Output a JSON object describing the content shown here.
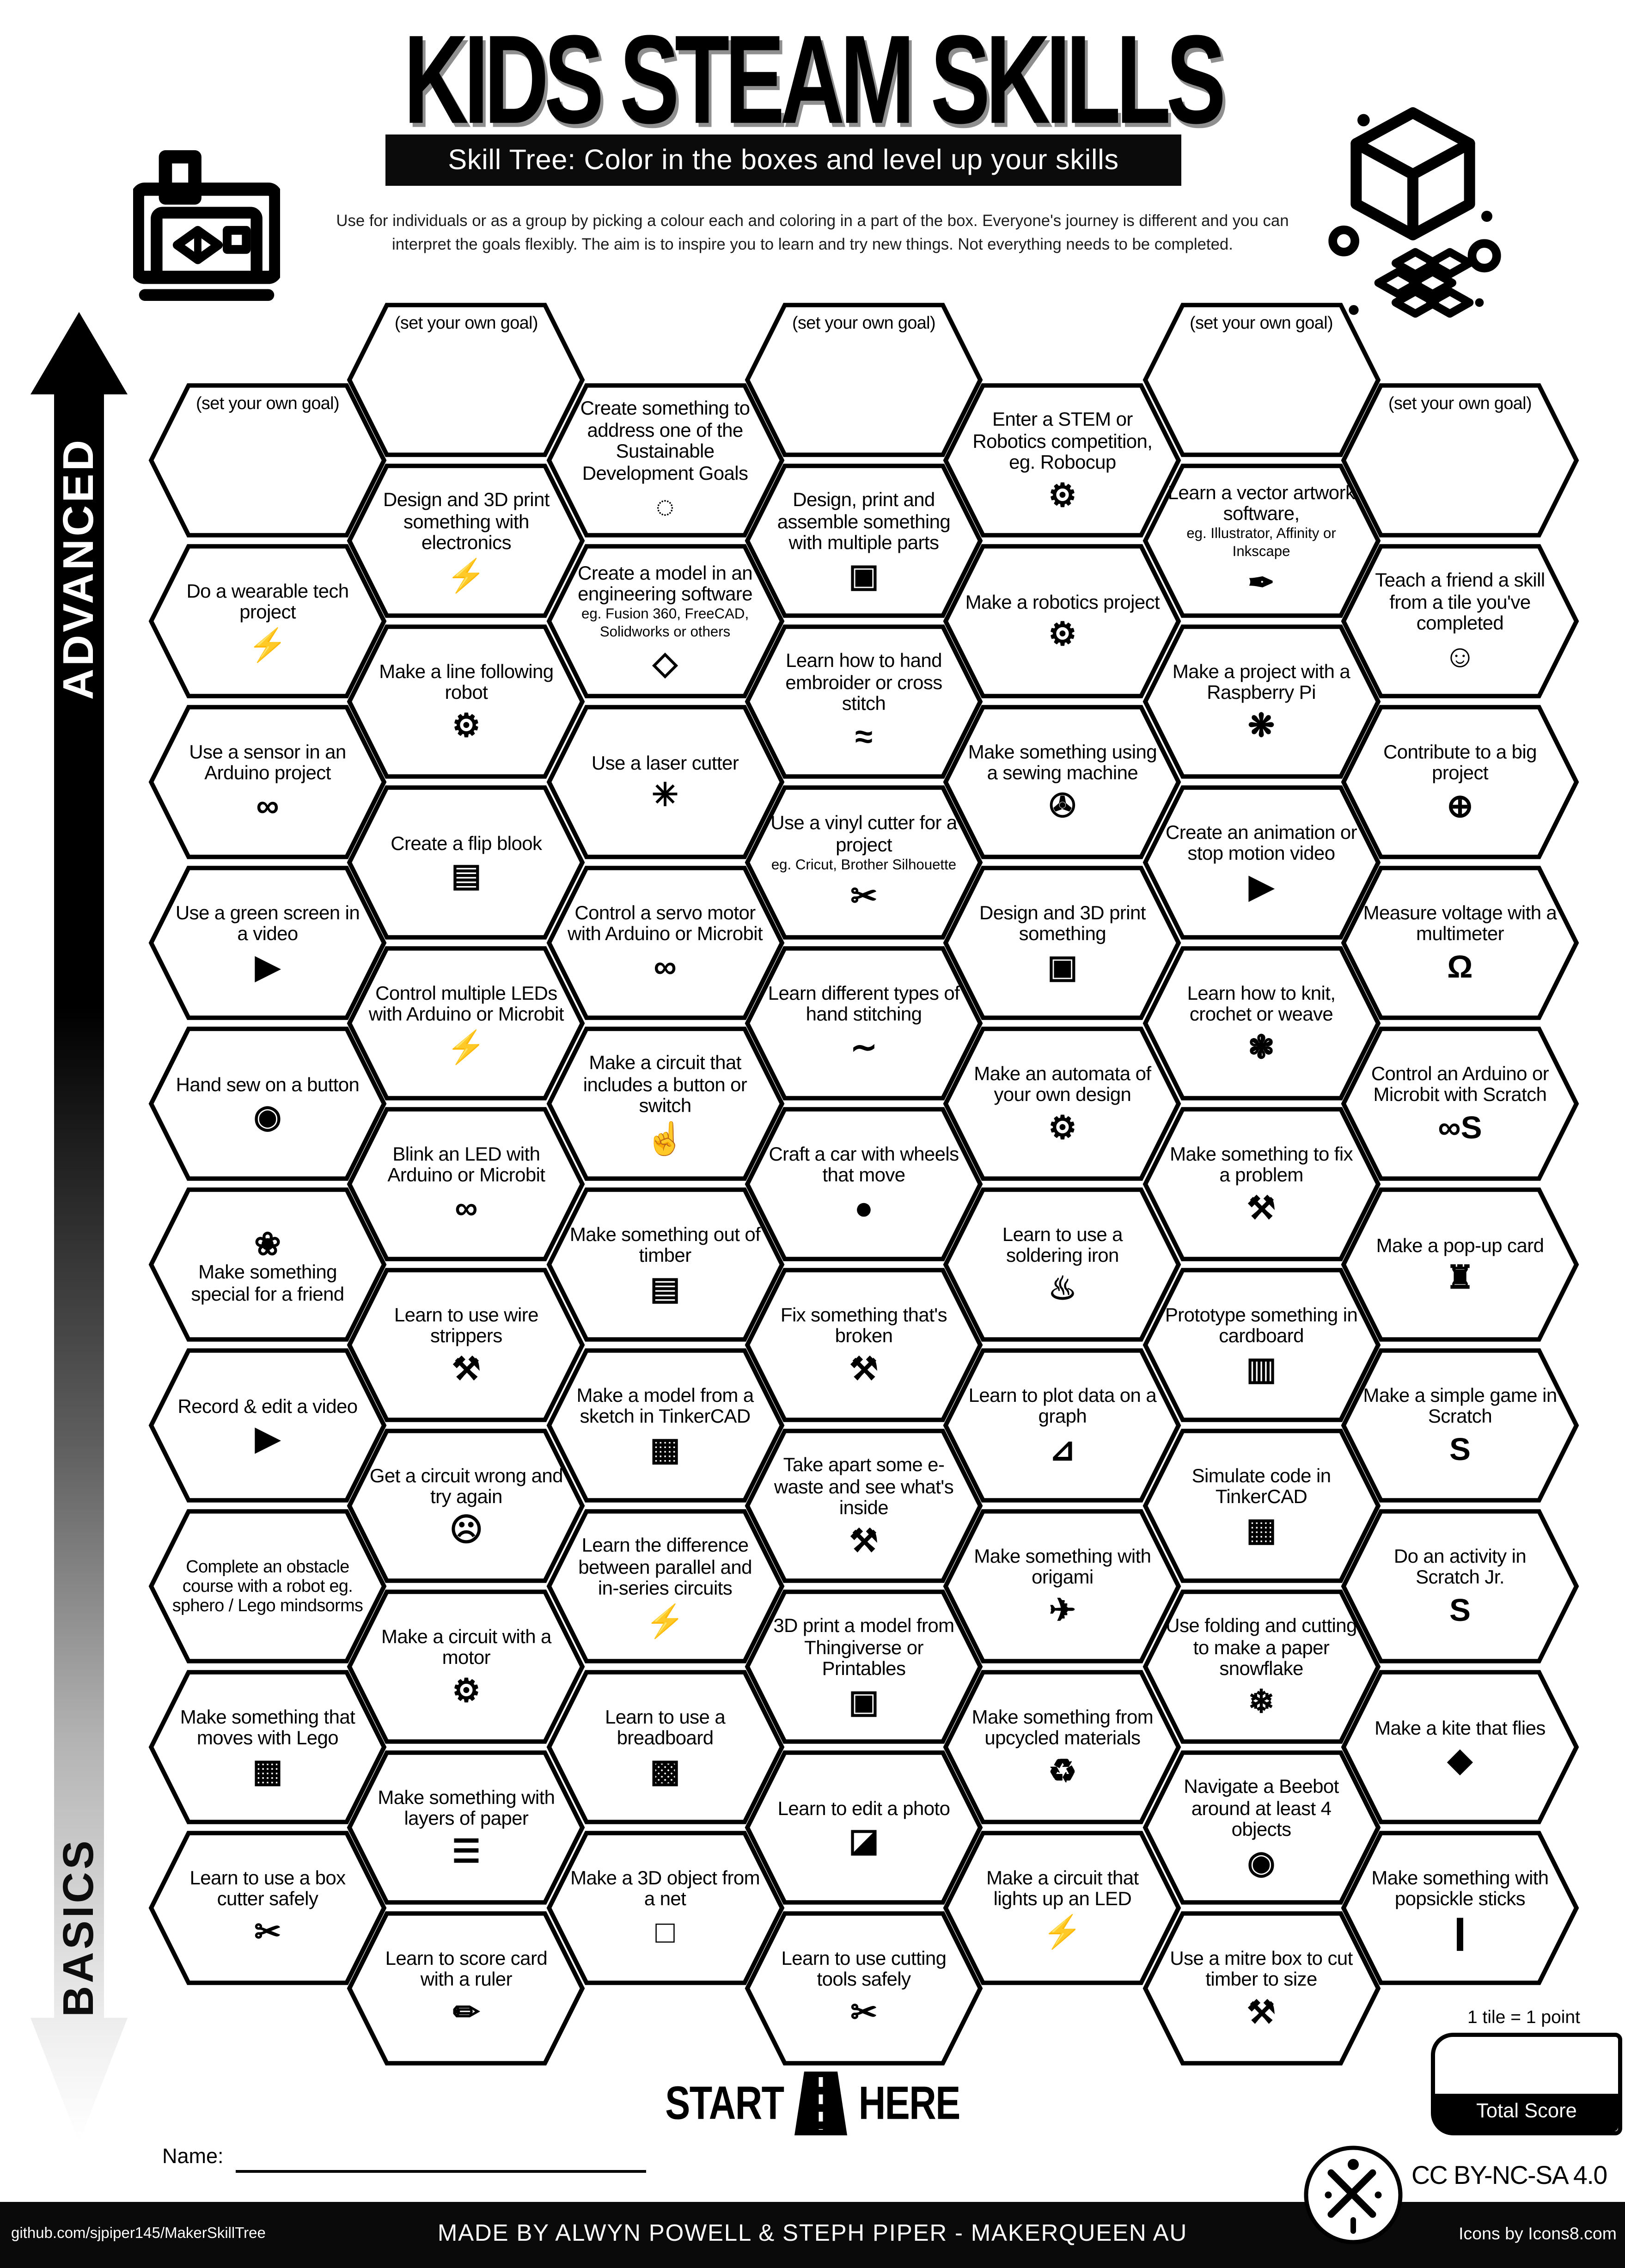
{
  "header": {
    "title": "KIDS STEAM SKILLS",
    "subtitle": "Skill Tree:  Color in the boxes and level up your skills",
    "description_line1": "Use for individuals or as a group by picking a colour each and coloring in a part of the box.  Everyone's journey is different and you can",
    "description_line2": "interpret the goals flexibly.  The aim is to inspire you to learn and try new things. Not everything needs to be completed."
  },
  "axis": {
    "top_label": "ADVANCED",
    "bottom_label": "BASICS"
  },
  "start": {
    "left": "START",
    "right": "HERE"
  },
  "footer_area": {
    "name_label": "Name:",
    "tile_point_note": "1 tile = 1 point",
    "total_score_label": "Total Score",
    "license": "CC BY-NC-SA 4.0"
  },
  "footer_bar": {
    "left": "github.com/sjpiper145/MakerSkillTree",
    "center": "MADE BY ALWYN POWELL & STEPH PIPER  -  MAKERQUEEN AU",
    "right": "Icons by Icons8.com"
  },
  "tiles": [
    {
      "col": 0,
      "row": 0,
      "goal": true,
      "label": "(set your own goal)"
    },
    {
      "col": 0,
      "row": 1,
      "label": "Do a wearable tech project",
      "icon": "led-bolt-icon",
      "glyph": "⚡"
    },
    {
      "col": 0,
      "row": 2,
      "label": "Use a sensor in an Arduino project",
      "icon": "arduino-icon",
      "glyph": "∞"
    },
    {
      "col": 0,
      "row": 3,
      "label": "Use a green screen in a video",
      "icon": "video-play-icon",
      "glyph": "▶"
    },
    {
      "col": 0,
      "row": 4,
      "label": "Hand sew on a button",
      "icon": "button-icon",
      "glyph": "◉"
    },
    {
      "col": 0,
      "row": 5,
      "label": "Make something special for a friend",
      "icon": "gift-bow-icon",
      "glyph": "❀",
      "icon_pos": "top"
    },
    {
      "col": 0,
      "row": 6,
      "label": "Record & edit a video",
      "icon": "video-play-icon",
      "glyph": "▶"
    },
    {
      "col": 0,
      "row": 7,
      "label": "Complete an obstacle course with a robot eg. sphero / Lego mindsorms",
      "small": true
    },
    {
      "col": 0,
      "row": 8,
      "label": "Make something that moves with Lego",
      "icon": "lego-brick-icon",
      "glyph": "▦"
    },
    {
      "col": 0,
      "row": 9,
      "label": "Learn to use a box cutter safely",
      "icon": "box-cutter-icon",
      "glyph": "✂"
    },
    {
      "col": 1,
      "row": 0,
      "goal": true,
      "label": "(set your own goal)"
    },
    {
      "col": 1,
      "row": 1,
      "label": "Design and 3D print something with electronics",
      "icon": "led-printer-icon",
      "glyph": "⚡"
    },
    {
      "col": 1,
      "row": 2,
      "label": "Make a line following robot",
      "icon": "robot-icon",
      "glyph": "⚙"
    },
    {
      "col": 1,
      "row": 3,
      "label": "Create a flip blook",
      "icon": "flip-book-icon",
      "glyph": "▤"
    },
    {
      "col": 1,
      "row": 4,
      "label": "Control multiple LEDs with Arduino or Microbit",
      "icon": "leds-icon",
      "glyph": "⚡"
    },
    {
      "col": 1,
      "row": 5,
      "label": "Blink an LED with Arduino or Microbit",
      "icon": "arduino-led-icon",
      "glyph": "∞"
    },
    {
      "col": 1,
      "row": 6,
      "label": "Learn to use wire strippers",
      "icon": "wire-strippers-icon",
      "glyph": "⚒"
    },
    {
      "col": 1,
      "row": 7,
      "label": "Get a circuit wrong and try again",
      "icon": "facepalm-icon",
      "glyph": "☹"
    },
    {
      "col": 1,
      "row": 8,
      "label": "Make a circuit with a motor",
      "icon": "motor-icon",
      "glyph": "⚙"
    },
    {
      "col": 1,
      "row": 9,
      "label": "Make something with layers of paper",
      "icon": "paper-layers-icon",
      "glyph": "☰"
    },
    {
      "col": 1,
      "row": 10,
      "label": "Learn to score card with a ruler",
      "icon": "ruler-icon",
      "glyph": "✏"
    },
    {
      "col": 2,
      "row": 0,
      "label": "Create something to address one of the Sustainable Development Goals",
      "icon": "sdg-ring-icon",
      "glyph": "◌"
    },
    {
      "col": 2,
      "row": 1,
      "label": "Create a model in an engineering software",
      "sub": "eg. Fusion 360, FreeCAD, Solidworks or others",
      "icon": "cad-cube-icon",
      "glyph": "◇"
    },
    {
      "col": 2,
      "row": 2,
      "label": "Use a laser cutter",
      "icon": "laser-icon",
      "glyph": "✳"
    },
    {
      "col": 2,
      "row": 3,
      "label": "Control a servo motor with Arduino or Microbit",
      "icon": "arduino-icon",
      "glyph": "∞"
    },
    {
      "col": 2,
      "row": 4,
      "label": "Make a circuit that includes a button or switch",
      "icon": "press-button-icon",
      "glyph": "☝"
    },
    {
      "col": 2,
      "row": 5,
      "label": "Make something out of timber",
      "icon": "timber-icon",
      "glyph": "▤"
    },
    {
      "col": 2,
      "row": 6,
      "label": "Make a model from a sketch in TinkerCAD",
      "icon": "tinkercad-icon",
      "glyph": "▦"
    },
    {
      "col": 2,
      "row": 7,
      "label": "Learn the difference between parallel and in-series circuits",
      "icon": "led-icon",
      "glyph": "⚡"
    },
    {
      "col": 2,
      "row": 8,
      "label": "Learn to use a breadboard",
      "icon": "breadboard-icon",
      "glyph": "▩"
    },
    {
      "col": 2,
      "row": 9,
      "label": "Make a 3D object from a net",
      "icon": "net-cube-icon",
      "glyph": "□"
    },
    {
      "col": 3,
      "row": 0,
      "goal": true,
      "label": "(set your own goal)"
    },
    {
      "col": 3,
      "row": 1,
      "label": "Design, print and assemble something with multiple parts",
      "icon": "cubes-icon",
      "glyph": "▣"
    },
    {
      "col": 3,
      "row": 2,
      "label": "Learn how to hand embroider or cross stitch",
      "icon": "embroidery-icon",
      "glyph": "≈"
    },
    {
      "col": 3,
      "row": 3,
      "label": "Use a vinyl cutter for a project",
      "sub": "eg. Cricut, Brother Silhouette",
      "icon": "vinyl-cutter-icon",
      "glyph": "✂"
    },
    {
      "col": 3,
      "row": 4,
      "label": "Learn different types of hand stitching",
      "icon": "stitching-icon",
      "glyph": "∼"
    },
    {
      "col": 3,
      "row": 5,
      "label": "Craft a car with wheels that move",
      "icon": "car-icon",
      "glyph": "●"
    },
    {
      "col": 3,
      "row": 6,
      "label": "Fix something that's broken",
      "icon": "tools-icon",
      "glyph": "⚒"
    },
    {
      "col": 3,
      "row": 7,
      "label": "Take apart some e-waste and see what's inside",
      "icon": "tools-icon",
      "glyph": "⚒"
    },
    {
      "col": 3,
      "row": 8,
      "label": "3D print a model from Thingiverse or Printables",
      "icon": "printer-3d-icon",
      "glyph": "▣"
    },
    {
      "col": 3,
      "row": 9,
      "label": "Learn to edit a photo",
      "icon": "photo-icon",
      "glyph": "◪"
    },
    {
      "col": 3,
      "row": 10,
      "label": "Learn to use cutting tools safely",
      "icon": "scissors-icon",
      "glyph": "✂"
    },
    {
      "col": 4,
      "row": 0,
      "label": "Enter a STEM or Robotics competition, eg. Robocup",
      "icon": "robot-icon",
      "glyph": "⚙"
    },
    {
      "col": 4,
      "row": 1,
      "label": "Make a robotics project",
      "icon": "robot-icon",
      "glyph": "⚙"
    },
    {
      "col": 4,
      "row": 2,
      "label": "Make something using a sewing machine",
      "icon": "sewing-machine-icon",
      "glyph": "✇"
    },
    {
      "col": 4,
      "row": 3,
      "label": "Design and 3D print something",
      "icon": "printer-3d-icon",
      "glyph": "▣"
    },
    {
      "col": 4,
      "row": 4,
      "label": "Make an automata of your own design",
      "icon": "gears-icon",
      "glyph": "⚙"
    },
    {
      "col": 4,
      "row": 5,
      "label": "Learn to use a soldering iron",
      "icon": "soldering-iron-icon",
      "glyph": "♨"
    },
    {
      "col": 4,
      "row": 6,
      "label": "Learn to plot data on a graph",
      "icon": "chart-icon",
      "glyph": "⊿"
    },
    {
      "col": 4,
      "row": 7,
      "label": "Make something with origami",
      "icon": "origami-icon",
      "glyph": "✈"
    },
    {
      "col": 4,
      "row": 8,
      "label": "Make something from upcycled materials",
      "icon": "recycle-icon",
      "glyph": "♻"
    },
    {
      "col": 4,
      "row": 9,
      "label": "Make a circuit that lights up an LED",
      "icon": "led-icon",
      "glyph": "⚡"
    },
    {
      "col": 5,
      "row": 0,
      "goal": true,
      "label": "(set your own goal)"
    },
    {
      "col": 5,
      "row": 1,
      "label": "Learn a vector artwork software,",
      "sub": "eg. Illustrator, Affinity or Inkscape",
      "icon": "pen-tool-icon",
      "glyph": "✒"
    },
    {
      "col": 5,
      "row": 2,
      "label": "Make a project with a Raspberry Pi",
      "icon": "raspberry-pi-icon",
      "glyph": "❋"
    },
    {
      "col": 5,
      "row": 3,
      "label": "Create an animation or stop motion video",
      "icon": "animation-icon",
      "glyph": "▶"
    },
    {
      "col": 5,
      "row": 4,
      "label": "Learn how to knit, crochet or weave",
      "icon": "yarn-icon",
      "glyph": "❃"
    },
    {
      "col": 5,
      "row": 5,
      "label": "Make something to fix a problem",
      "icon": "tools-icon",
      "glyph": "⚒"
    },
    {
      "col": 5,
      "row": 6,
      "label": "Prototype something in cardboard",
      "icon": "cardboard-box-icon",
      "glyph": "▥"
    },
    {
      "col": 5,
      "row": 7,
      "label": "Simulate code in TinkerCAD",
      "icon": "tinkercad-icon",
      "glyph": "▦"
    },
    {
      "col": 5,
      "row": 8,
      "label": "Use folding and cutting to make a paper snowflake",
      "icon": "snowflake-icon",
      "glyph": "❄"
    },
    {
      "col": 5,
      "row": 9,
      "label": "Navigate a Beebot around at least 4 objects",
      "icon": "beebot-icon",
      "glyph": "◉"
    },
    {
      "col": 5,
      "row": 10,
      "label": "Use a mitre box to cut timber to size",
      "icon": "mitre-box-icon",
      "glyph": "⚒"
    },
    {
      "col": 6,
      "row": 0,
      "goal": true,
      "label": "(set your own goal)"
    },
    {
      "col": 6,
      "row": 1,
      "label": "Teach a friend a skill from a tile you've completed",
      "icon": "teach-friends-icon",
      "glyph": "☺"
    },
    {
      "col": 6,
      "row": 2,
      "label": "Contribute to a big project",
      "icon": "globe-icon",
      "glyph": "⊕"
    },
    {
      "col": 6,
      "row": 3,
      "label": "Measure voltage with a multimeter",
      "icon": "multimeter-icon",
      "glyph": "Ω"
    },
    {
      "col": 6,
      "row": 4,
      "label": "Control an Arduino or Microbit with Scratch",
      "icon": "arduino-scratch-icon",
      "glyph": "∞S"
    },
    {
      "col": 6,
      "row": 5,
      "label": "Make a pop-up card",
      "icon": "popup-card-icon",
      "glyph": "♜"
    },
    {
      "col": 6,
      "row": 6,
      "label": "Make a simple game in Scratch",
      "icon": "scratch-icon",
      "glyph": "S"
    },
    {
      "col": 6,
      "row": 7,
      "label": "Do an activity in Scratch Jr.",
      "icon": "scratch-jr-icon",
      "glyph": "S"
    },
    {
      "col": 6,
      "row": 8,
      "label": "Make a kite that flies",
      "icon": "kite-icon",
      "glyph": "◆"
    },
    {
      "col": 6,
      "row": 9,
      "label": "Make something with popsickle sticks",
      "icon": "popsicle-icon",
      "glyph": "❙"
    }
  ]
}
